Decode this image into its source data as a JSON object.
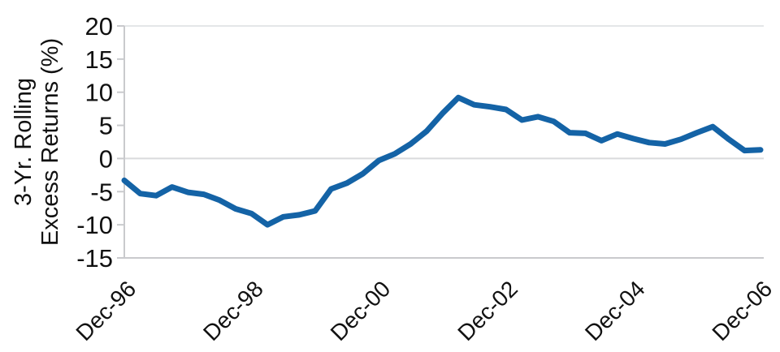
{
  "chart_data": {
    "type": "line",
    "title": "",
    "ylabel_lines": [
      "3-Yr. Rolling",
      "Excess Returns (%)"
    ],
    "series": [
      {
        "name": "3-yr-rolling-excess-returns",
        "color": "#1463A6",
        "values": [
          -3.3,
          -5.3,
          -5.6,
          -4.3,
          -5.1,
          -5.4,
          -6.3,
          -7.6,
          -8.3,
          -10.0,
          -8.8,
          -8.5,
          -7.9,
          -4.6,
          -3.7,
          -2.3,
          -0.3,
          0.7,
          2.2,
          4.1,
          6.8,
          9.2,
          8.1,
          7.8,
          7.4,
          5.8,
          6.3,
          5.6,
          3.9,
          3.8,
          2.7,
          3.7,
          3.0,
          2.4,
          2.2,
          2.9,
          3.9,
          4.8,
          2.9,
          1.2,
          1.3
        ]
      }
    ],
    "x_axis": {
      "tick_labels": [
        "Dec-96",
        "Dec-98",
        "Dec-00",
        "Dec-02",
        "Dec-04",
        "Dec-06"
      ],
      "tick_indices": [
        0,
        8,
        16,
        24,
        32,
        40
      ],
      "n_points": 41,
      "frequency": "quarterly"
    },
    "y_axis": {
      "min": -15,
      "max": 20,
      "tick_step": 5,
      "tick_labels": [
        "20",
        "15",
        "10",
        "5",
        "0",
        "-5",
        "-10",
        "-15"
      ]
    },
    "grid": {
      "zero_line": true,
      "horizontal_gridlines": false
    },
    "legend": "none",
    "colors": {
      "line": "#1463A6",
      "axis": "#c9cacd",
      "zero_line": "#d9dadc",
      "top_border": "#dcdde0",
      "text": "#111111"
    },
    "line_width": 7
  }
}
